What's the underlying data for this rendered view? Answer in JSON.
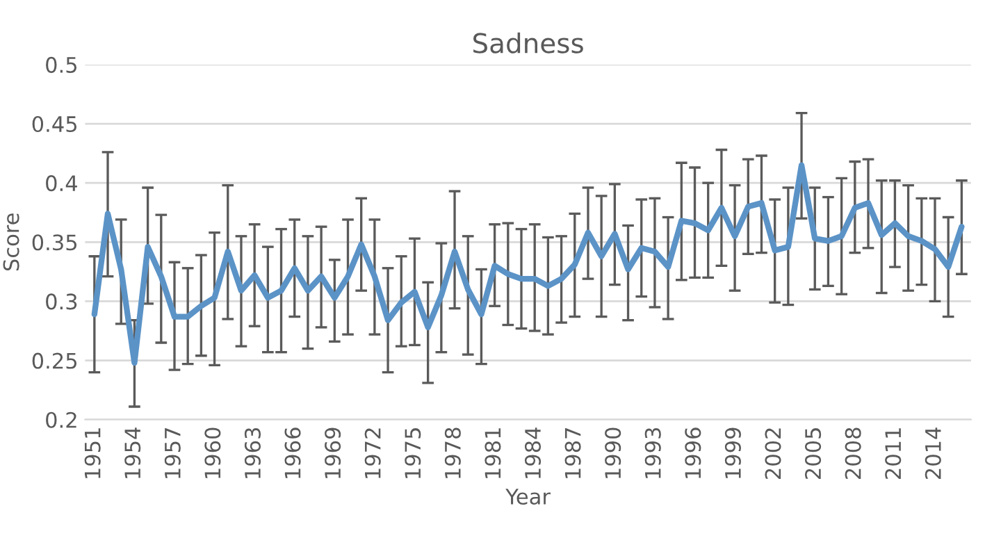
{
  "chart_data": {
    "type": "line",
    "title": "Sadness",
    "xlabel": "Year",
    "ylabel": "Score",
    "x": [
      1951,
      1952,
      1953,
      1954,
      1955,
      1956,
      1957,
      1958,
      1959,
      1960,
      1961,
      1962,
      1963,
      1964,
      1965,
      1966,
      1967,
      1968,
      1969,
      1970,
      1971,
      1972,
      1973,
      1974,
      1975,
      1976,
      1977,
      1978,
      1979,
      1980,
      1981,
      1982,
      1983,
      1984,
      1985,
      1986,
      1987,
      1988,
      1989,
      1990,
      1991,
      1992,
      1993,
      1994,
      1995,
      1996,
      1997,
      1998,
      1999,
      2000,
      2001,
      2002,
      2003,
      2004,
      2005,
      2006,
      2007,
      2008,
      2009,
      2010,
      2011,
      2012,
      2013,
      2014,
      2015,
      2016
    ],
    "series": [
      {
        "color": "#5b93c7",
        "values": [
          0.289,
          0.374,
          0.327,
          0.248,
          0.346,
          0.321,
          0.287,
          0.287,
          0.296,
          0.303,
          0.342,
          0.309,
          0.322,
          0.303,
          0.309,
          0.328,
          0.309,
          0.321,
          0.303,
          0.321,
          0.348,
          0.321,
          0.284,
          0.299,
          0.308,
          0.278,
          0.305,
          0.342,
          0.31,
          0.289,
          0.33,
          0.323,
          0.319,
          0.319,
          0.313,
          0.319,
          0.331,
          0.358,
          0.338,
          0.357,
          0.327,
          0.345,
          0.342,
          0.329,
          0.368,
          0.366,
          0.36,
          0.379,
          0.355,
          0.38,
          0.383,
          0.343,
          0.346,
          0.415,
          0.353,
          0.351,
          0.355,
          0.379,
          0.383,
          0.356,
          0.366,
          0.355,
          0.351,
          0.344,
          0.329,
          0.363
        ],
        "errors": [
          [
            0.24,
            0.338
          ],
          [
            0.321,
            0.426
          ],
          [
            0.281,
            0.369
          ],
          [
            0.211,
            0.284
          ],
          [
            0.298,
            0.396
          ],
          [
            0.265,
            0.373
          ],
          [
            0.242,
            0.333
          ],
          [
            0.247,
            0.328
          ],
          [
            0.254,
            0.339
          ],
          [
            0.246,
            0.358
          ],
          [
            0.285,
            0.398
          ],
          [
            0.262,
            0.355
          ],
          [
            0.279,
            0.365
          ],
          [
            0.257,
            0.346
          ],
          [
            0.257,
            0.361
          ],
          [
            0.287,
            0.369
          ],
          [
            0.26,
            0.355
          ],
          [
            0.278,
            0.363
          ],
          [
            0.266,
            0.335
          ],
          [
            0.272,
            0.369
          ],
          [
            0.309,
            0.387
          ],
          [
            0.272,
            0.369
          ],
          [
            0.24,
            0.328
          ],
          [
            0.262,
            0.338
          ],
          [
            0.263,
            0.353
          ],
          [
            0.231,
            0.316
          ],
          [
            0.257,
            0.349
          ],
          [
            0.294,
            0.393
          ],
          [
            0.255,
            0.355
          ],
          [
            0.247,
            0.327
          ],
          [
            0.296,
            0.365
          ],
          [
            0.28,
            0.366
          ],
          [
            0.277,
            0.361
          ],
          [
            0.275,
            0.365
          ],
          [
            0.272,
            0.354
          ],
          [
            0.282,
            0.355
          ],
          [
            0.287,
            0.374
          ],
          [
            0.319,
            0.396
          ],
          [
            0.287,
            0.389
          ],
          [
            0.314,
            0.399
          ],
          [
            0.284,
            0.364
          ],
          [
            0.304,
            0.386
          ],
          [
            0.295,
            0.387
          ],
          [
            0.285,
            0.371
          ],
          [
            0.318,
            0.417
          ],
          [
            0.32,
            0.413
          ],
          [
            0.32,
            0.4
          ],
          [
            0.33,
            0.428
          ],
          [
            0.309,
            0.398
          ],
          [
            0.34,
            0.42
          ],
          [
            0.341,
            0.423
          ],
          [
            0.299,
            0.386
          ],
          [
            0.297,
            0.396
          ],
          [
            0.37,
            0.459
          ],
          [
            0.31,
            0.396
          ],
          [
            0.313,
            0.388
          ],
          [
            0.306,
            0.404
          ],
          [
            0.341,
            0.418
          ],
          [
            0.345,
            0.42
          ],
          [
            0.307,
            0.402
          ],
          [
            0.329,
            0.402
          ],
          [
            0.309,
            0.398
          ],
          [
            0.314,
            0.387
          ],
          [
            0.3,
            0.387
          ],
          [
            0.287,
            0.371
          ],
          [
            0.323,
            0.402
          ]
        ]
      }
    ],
    "xlim": [
      1950.3,
      2016.7
    ],
    "xticks": [
      1951,
      1954,
      1957,
      1960,
      1963,
      1966,
      1969,
      1972,
      1975,
      1978,
      1981,
      1984,
      1987,
      1990,
      1993,
      1996,
      1999,
      2002,
      2005,
      2008,
      2011,
      2014
    ],
    "ylim": [
      0.2,
      0.5
    ],
    "yticks": [
      0.2,
      0.25,
      0.3,
      0.35,
      0.4,
      0.45,
      0.5
    ],
    "grid": "y",
    "marker": "none",
    "line_style": "solid"
  }
}
